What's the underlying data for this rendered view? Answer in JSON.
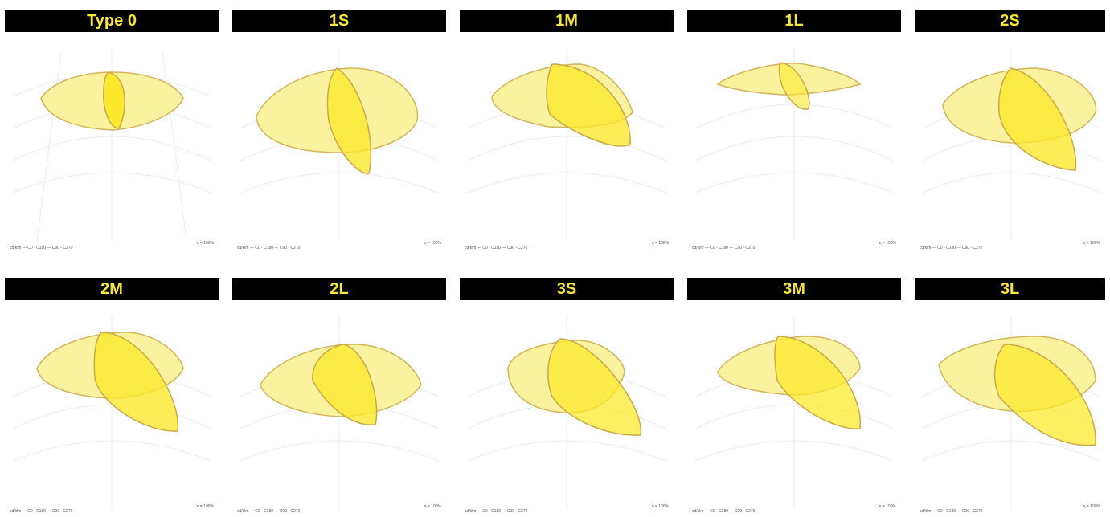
{
  "colors": {
    "header_bg": "#000000",
    "header_text": "#f6e63a",
    "fill_light": "#fbf2a0",
    "fill_bright": "#fbe92e",
    "outline": "#c9a84a",
    "grid": "#e6e6e6"
  },
  "legend": {
    "unit": "cd/klm",
    "plane_a": "C0 - C180",
    "plane_b": "C90 - C270"
  },
  "panels": [
    {
      "title": "Type 0",
      "eta": "η = 100%"
    },
    {
      "title": "1S",
      "eta": "η = 100%"
    },
    {
      "title": "1M",
      "eta": "η = 100%"
    },
    {
      "title": "1L",
      "eta": "η = 100%"
    },
    {
      "title": "2S",
      "eta": "η = 100%"
    },
    {
      "title": "2M",
      "eta": "η = 100%"
    },
    {
      "title": "2L",
      "eta": "η = 100%"
    },
    {
      "title": "3S",
      "eta": "η = 100%"
    },
    {
      "title": "3M",
      "eta": "η = 100%"
    },
    {
      "title": "3L",
      "eta": "η = 100%"
    }
  ]
}
